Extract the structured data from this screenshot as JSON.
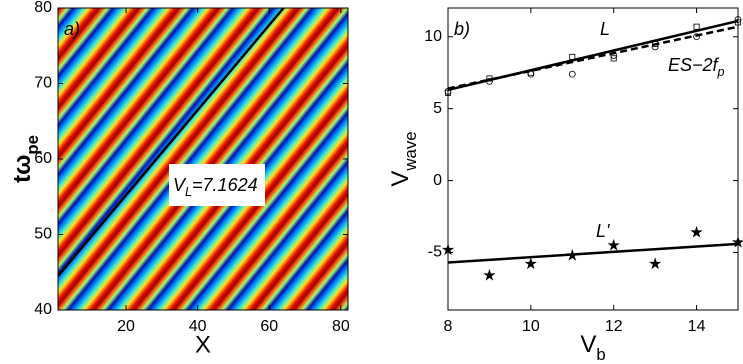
{
  "chart_data": [
    {
      "type": "heatmap",
      "panel_label": "a)",
      "xlabel": "X",
      "ylabel": {
        "main": "tω",
        "sub": "pe"
      },
      "xlim": [
        1,
        82
      ],
      "ylim": [
        40,
        80
      ],
      "xticks": [
        20,
        40,
        60,
        80
      ],
      "yticks": [
        40,
        50,
        60,
        70,
        80
      ],
      "fit_line": {
        "x": [
          1,
          64
        ],
        "y": [
          44.5,
          80
        ],
        "color": "#000000"
      },
      "annotation": {
        "main": "V",
        "sub": "L",
        "rest": "=7.1624"
      }
    },
    {
      "type": "scatter",
      "panel_label": "b)",
      "xlabel": {
        "main": "V",
        "sub": "b"
      },
      "ylabel": {
        "main": "V",
        "sub": "wave"
      },
      "xlim": [
        8,
        15
      ],
      "ylim": [
        -9,
        12
      ],
      "xticks": [
        8,
        10,
        12,
        14
      ],
      "yticks": [
        -5,
        0,
        5,
        10
      ],
      "x": [
        8,
        9,
        10,
        11,
        12,
        13,
        14,
        15
      ],
      "series": [
        {
          "marker": "circle",
          "values": [
            6.2,
            6.9,
            7.4,
            7.4,
            8.7,
            9.3,
            10.0,
            11.2
          ]
        },
        {
          "marker": "square",
          "values": [
            6.1,
            7.1,
            7.5,
            8.6,
            8.5,
            9.5,
            10.7,
            11.0
          ]
        },
        {
          "marker": "star",
          "values": [
            -4.8,
            -6.6,
            -5.8,
            -5.2,
            -4.5,
            -5.8,
            -3.6,
            -4.3
          ]
        }
      ],
      "lines": [
        {
          "name": "L",
          "x": [
            8,
            15
          ],
          "values": [
            6.3,
            11.1
          ],
          "style": "solid"
        },
        {
          "name": {
            "main": "ES−2f",
            "sub": "p"
          },
          "x": [
            8,
            15
          ],
          "values": [
            6.4,
            10.7
          ],
          "style": "dashed"
        },
        {
          "name": "L'",
          "x": [
            8,
            15
          ],
          "values": [
            -5.7,
            -4.4
          ],
          "style": "solid"
        }
      ]
    }
  ]
}
